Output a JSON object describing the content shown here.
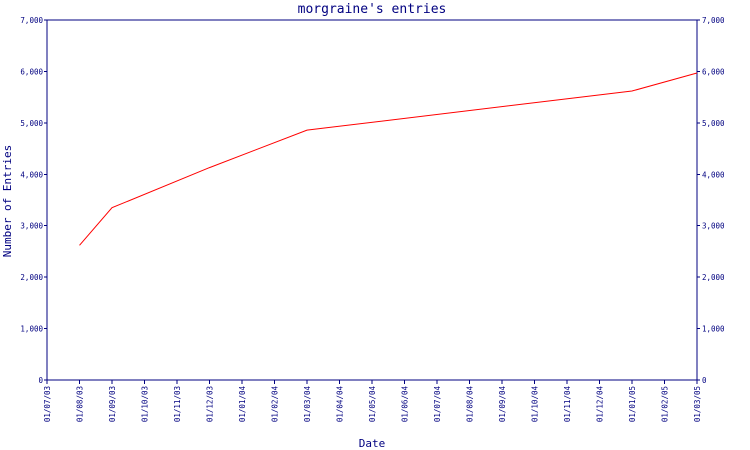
{
  "chart_data": {
    "type": "line",
    "title": "morgraine's entries",
    "xlabel": "Date",
    "ylabel": "Number of Entries",
    "ylim": [
      0,
      7000
    ],
    "y_ticks": [
      0,
      1000,
      2000,
      3000,
      4000,
      5000,
      6000,
      7000
    ],
    "y_tick_labels": [
      "0",
      "1,000",
      "2,000",
      "3,000",
      "4,000",
      "5,000",
      "6,000",
      "7,000"
    ],
    "y_axis_sides": "left and right",
    "x_tick_labels": [
      "01/07/03",
      "01/08/03",
      "01/09/03",
      "01/10/03",
      "01/11/03",
      "01/12/03",
      "01/01/04",
      "01/02/04",
      "01/03/04",
      "01/04/04",
      "01/05/04",
      "01/06/04",
      "01/07/04",
      "01/08/04",
      "01/09/04",
      "01/10/04",
      "01/11/04",
      "01/12/04",
      "01/01/05",
      "01/02/05",
      "01/03/05"
    ],
    "grid": false,
    "line_color": "#ff0000",
    "axis_color": "#000080",
    "series": [
      {
        "x": [
          "01/08/03",
          "01/09/03",
          "01/12/03",
          "01/03/04",
          "01/01/05",
          "01/03/05"
        ],
        "values": [
          2620,
          3350,
          4130,
          4860,
          5620,
          5970
        ]
      }
    ]
  }
}
